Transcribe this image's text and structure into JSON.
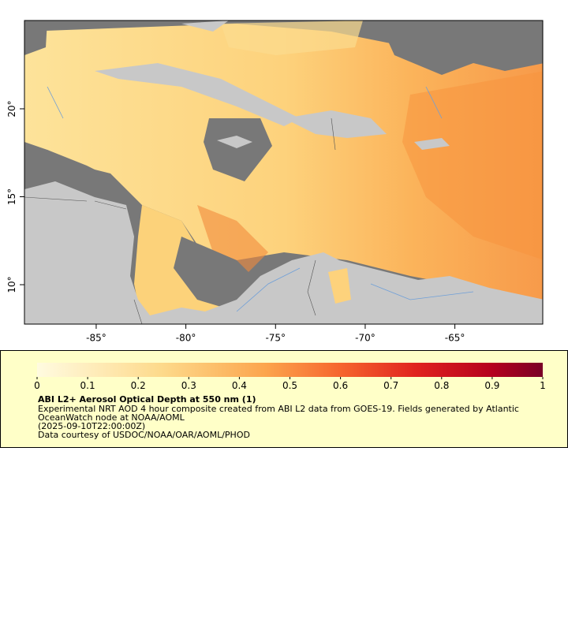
{
  "map": {
    "xlim": [
      -89,
      -60.1
    ],
    "ylim": [
      7.76,
      25.02
    ],
    "xticks": [
      {
        "value": -85,
        "label": "-85°"
      },
      {
        "value": -80,
        "label": "-80°"
      },
      {
        "value": -75,
        "label": "-75°"
      },
      {
        "value": -70,
        "label": "-70°"
      },
      {
        "value": -65,
        "label": "-65°"
      }
    ],
    "yticks": [
      {
        "value": 10,
        "label": "10°"
      },
      {
        "value": 15,
        "label": "15°"
      },
      {
        "value": 20,
        "label": "20°"
      }
    ]
  },
  "legend": {
    "colorbar_ticks": [
      0,
      0.1,
      0.2,
      0.3,
      0.4,
      0.5,
      0.6,
      0.7,
      0.8,
      0.9,
      1
    ],
    "title": "ABI L2+ Aerosol Optical Depth at 550 nm (1)",
    "lines": [
      "Experimental NRT AOD 4 hour composite created from ABI L2 data from GOES-19. Fields generated by Atlantic",
      "OceanWatch node at NOAA/AOML",
      "(2025-09-10T22:00:00Z)",
      "Data courtesy of USDOC/NOAA/OAR/AOML/PHOD"
    ]
  }
}
